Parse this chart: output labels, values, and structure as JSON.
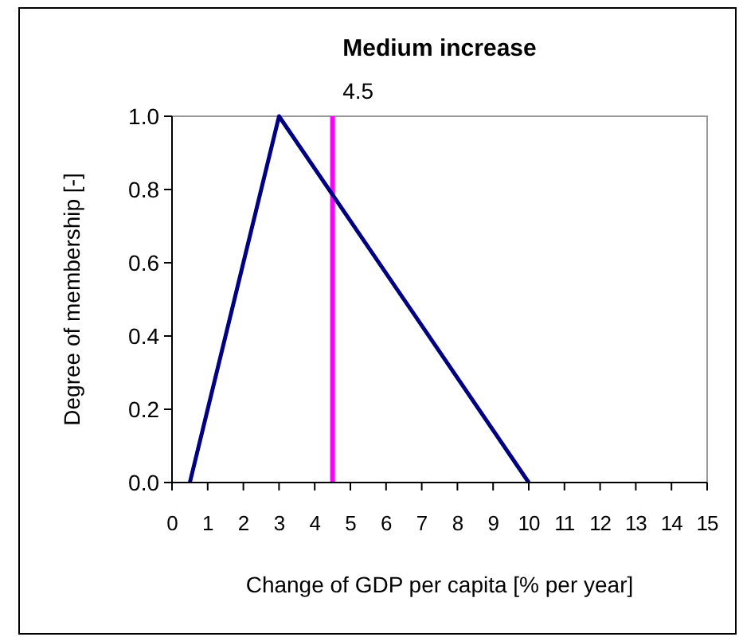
{
  "chart_data": {
    "type": "line",
    "title": "Medium increase",
    "xlabel": "Change of GDP per capita [% per year]",
    "ylabel": "Degree of membership [-]",
    "x": [
      0.5,
      3,
      10
    ],
    "series": [
      {
        "color": "#000080",
        "values": [
          0,
          1,
          0
        ]
      }
    ],
    "xlim": [
      0,
      15
    ],
    "xticks": [
      0,
      1,
      2,
      3,
      4,
      5,
      6,
      7,
      8,
      9,
      10,
      11,
      12,
      13,
      14,
      15
    ],
    "ylim": [
      0,
      1
    ],
    "yticks": [
      {
        "value": 0,
        "label": "0.0"
      },
      {
        "value": 0.2,
        "label": "0.2"
      },
      {
        "value": 0.4,
        "label": "0.4"
      },
      {
        "value": 0.6,
        "label": "0.6"
      },
      {
        "value": 0.8,
        "label": "0.8"
      },
      {
        "value": 1,
        "label": "1.0"
      }
    ],
    "ref_lines": [
      {
        "axis": "x",
        "value": 4.5,
        "label": "4.5",
        "color": "#ff00ff"
      }
    ],
    "grid": false,
    "marker": "none",
    "line_style": "solid"
  }
}
